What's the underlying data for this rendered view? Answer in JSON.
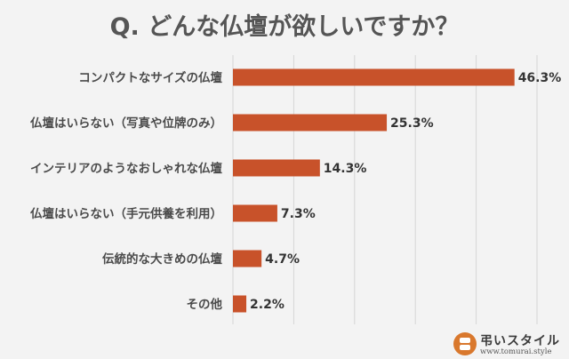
{
  "chart_data": {
    "type": "bar",
    "orientation": "horizontal",
    "title": "Q. どんな仏壇が欲しいですか？",
    "categories": [
      "コンパクトなサイズの仏壇",
      "仏壇はいらない（写真や位牌のみ）",
      "インテリアのようなおしゃれな仏壇",
      "仏壇はいらない（手元供養を利用）",
      "伝統的な大きめの仏壇",
      "その他"
    ],
    "values": [
      46.3,
      25.3,
      14.3,
      7.3,
      4.7,
      2.2
    ],
    "value_labels": [
      "46.3%",
      "25.3%",
      "14.3%",
      "7.3%",
      "4.7%",
      "2.2%"
    ],
    "xlim": [
      0,
      50
    ],
    "grid": true,
    "bar_color": "#c8522a"
  },
  "logo": {
    "name": "弔いスタイル",
    "url": "www.tomurai.style"
  }
}
